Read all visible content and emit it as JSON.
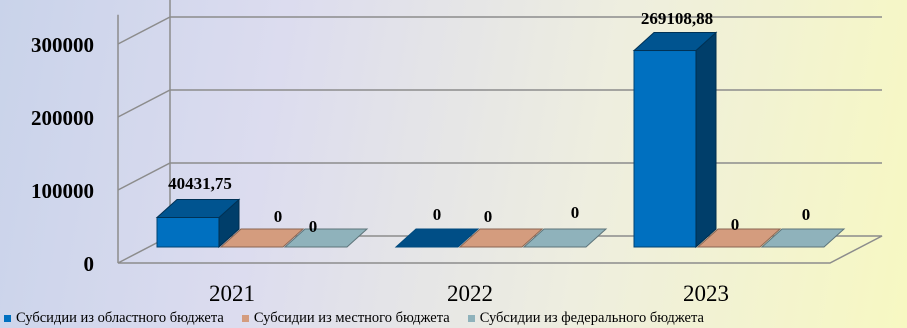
{
  "chart_data": {
    "type": "bar",
    "categories": [
      "2021",
      "2022",
      "2023"
    ],
    "series": [
      {
        "name": "Субсидии из областного бюджета",
        "values": [
          40431.75,
          0,
          269108.88
        ],
        "labels": [
          "40431,75",
          "0",
          "269108,88"
        ],
        "color": "#0070c0"
      },
      {
        "name": "Субсидии из местного бюджета",
        "values": [
          0,
          0,
          0
        ],
        "labels": [
          "0",
          "0",
          "0"
        ],
        "color": "#d49c7e"
      },
      {
        "name": "Субсидии из федерального бюджета",
        "values": [
          0,
          0,
          0
        ],
        "labels": [
          "0",
          "0",
          "0"
        ],
        "color": "#8fb2bb"
      }
    ],
    "yticks": [
      0,
      100000,
      200000,
      300000
    ],
    "ylim": [
      0,
      340000
    ],
    "grid": true,
    "legend": "bottom",
    "style": "3d"
  }
}
